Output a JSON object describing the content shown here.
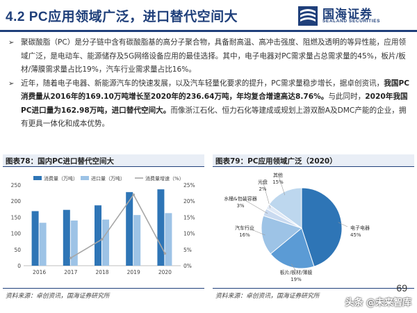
{
  "header": {
    "title": "4.2 PC应用领域广泛，进口替代空间大",
    "logo_cn": "国海证券",
    "logo_en": "SEALAND SECURITIES"
  },
  "bullets": [
    {
      "mark": "➢",
      "parts": [
        {
          "text": "聚碳酸脂（PC）是分子链中含有碳酸脂基的高分子聚合物，具备耐高温、高冲击强度、阻燃及透明的等异性能，应用领域广泛，是电动车、能源储存及5G网络设备应用的最佳选择。其中，电子电器对PC需求量占总需求量的45%，板片/板材/薄膜需求量占比19%，汽车行业需求量占比16%。",
          "bold": false
        }
      ]
    },
    {
      "mark": "➢",
      "parts": [
        {
          "text": "近年，随着电子电器、新能源汽车的快速发展，以及汽车轻量化要求的提升，PC需求量稳步增长，据卓创资讯，",
          "bold": false
        },
        {
          "text": "我国PC消费量从2016年的169.10万吨增长至2020年的236.64万吨，年均复合增速高达8.76%。",
          "bold": true
        },
        {
          "text": "与此同时，",
          "bold": false
        },
        {
          "text": "2020年我国PC进口量为162.98万吨，进口替代空间大。",
          "bold": true
        },
        {
          "text": "而像浙江石化、恒力石化等建成或规划上游双酚A及DMC产能的企业，拥有更具一体化和成本优势。",
          "bold": false
        }
      ]
    }
  ],
  "left_chart": {
    "title": "图表78：国内PC进口替代空间大",
    "source": "资料来源：卓创资讯，国海证券研究所"
  },
  "right_chart": {
    "title": "图表79：PC应用领域广泛（2020）",
    "source": "资料来源：卓创资讯，国海证券研究所"
  },
  "page_number": "69",
  "watermark": "头条 @未来智库",
  "chart_data": [
    {
      "type": "bar",
      "title": "图表78：国内PC进口替代空间大",
      "categories": [
        "2016",
        "2017",
        "2018",
        "2019",
        "2020"
      ],
      "series": [
        {
          "name": "消费量（万吨）",
          "kind": "bar",
          "axis": "left",
          "color": "#2e75b6",
          "values": [
            169.1,
            173,
            187,
            228,
            236.64
          ]
        },
        {
          "name": "进口量（万吨）",
          "kind": "bar",
          "axis": "left",
          "color": "#9dc3e6",
          "values": [
            133,
            140,
            143,
            157,
            162.98
          ]
        },
        {
          "name": "消费量增速（%）",
          "kind": "line",
          "axis": "right",
          "color": "#a6a6a6",
          "values": [
            null,
            2.4,
            8.2,
            22,
            3.8
          ]
        }
      ],
      "ylim_left": [
        0,
        250
      ],
      "yticks_left": [
        "0",
        "50",
        "100",
        "150",
        "200",
        "250"
      ],
      "ylim_right": [
        0,
        25
      ],
      "yticks_right": [
        "0%",
        "5%",
        "10%",
        "15%",
        "20%",
        "25%"
      ],
      "legend": "top",
      "grid": false
    },
    {
      "type": "pie",
      "title": "图表79：PC应用领域广泛（2020）",
      "slices": [
        {
          "label": "电子电器",
          "value": 45,
          "display": "45%",
          "color": "#2e75b6"
        },
        {
          "label": "板片/板材/薄膜",
          "value": 19,
          "display": "19%",
          "color": "#5b9bd5"
        },
        {
          "label": "汽车行业",
          "value": 16,
          "display": "16%",
          "color": "#9dc3e6"
        },
        {
          "label": "水桶&包装容器",
          "value": 3,
          "display": "3%",
          "color": "#c9daf0"
        },
        {
          "label": "光盘",
          "value": 2,
          "display": "2%",
          "color": "#dfe9f6"
        },
        {
          "label": "其他",
          "value": 15,
          "display": "15%",
          "color": "#bdd7ee"
        }
      ]
    }
  ]
}
